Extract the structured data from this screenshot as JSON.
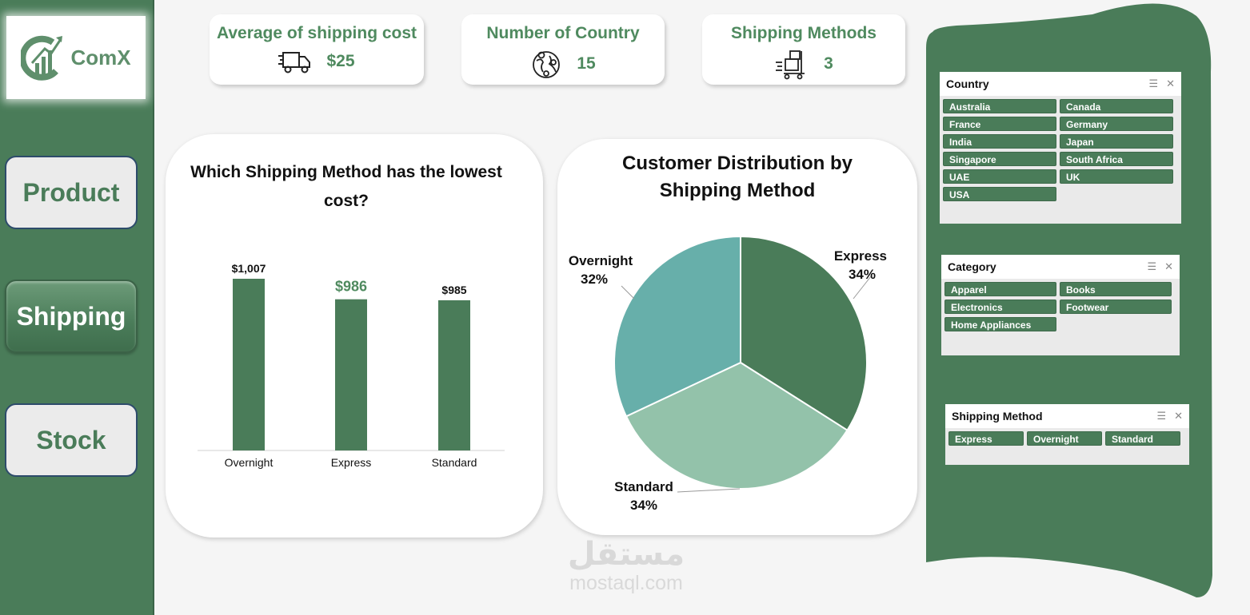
{
  "brand": {
    "name": "ComX"
  },
  "nav": {
    "product": "Product",
    "shipping": "Shipping",
    "stock": "Stock"
  },
  "kpis": {
    "avg_cost": {
      "title": "Average of shipping cost",
      "value": "$25",
      "icon": "delivery-truck-icon"
    },
    "countries": {
      "title": "Number of Country",
      "value": "15",
      "icon": "globe-icon"
    },
    "methods": {
      "title": "Shipping Methods",
      "value": "3",
      "icon": "shipping-dolly-icon"
    }
  },
  "chart_data": [
    {
      "type": "bar",
      "title": "Which Shipping Method  has the lowest cost?",
      "categories": [
        "Overnight",
        "Express",
        "Standard"
      ],
      "values": [
        1007,
        986,
        985
      ],
      "data_labels": [
        "$1,007",
        "$986",
        "$985"
      ],
      "color": "#4a7c59",
      "highlight_label_color": "#4f8a5f",
      "grid": false
    },
    {
      "type": "pie",
      "title": "Customer Distribution by Shipping Method",
      "categories": [
        "Express",
        "Standard",
        "Overnight"
      ],
      "values": [
        34,
        34,
        32
      ],
      "data_labels": [
        "34%",
        "34%",
        "32%"
      ],
      "colors": [
        "#4a7c59",
        "#93c2aa",
        "#67afaa"
      ]
    }
  ],
  "slicers": {
    "country": {
      "title": "Country",
      "items": [
        "Australia",
        "Canada",
        "France",
        "Germany",
        "India",
        "Japan",
        "Singapore",
        "South Africa",
        "UAE",
        "UK",
        "USA"
      ]
    },
    "category": {
      "title": "Category",
      "items": [
        "Apparel",
        "Books",
        "Electronics",
        "Footwear",
        "Home Appliances"
      ]
    },
    "shipping_method": {
      "title": "Shipping Method",
      "items": [
        "Express",
        "Overnight",
        "Standard"
      ]
    }
  },
  "watermark": {
    "arabic": "مستقل",
    "latin": "mostaql.com"
  },
  "colors": {
    "primary": "#4a7c59",
    "accent_text": "#4f8a5f",
    "background": "#f5f5f5"
  }
}
